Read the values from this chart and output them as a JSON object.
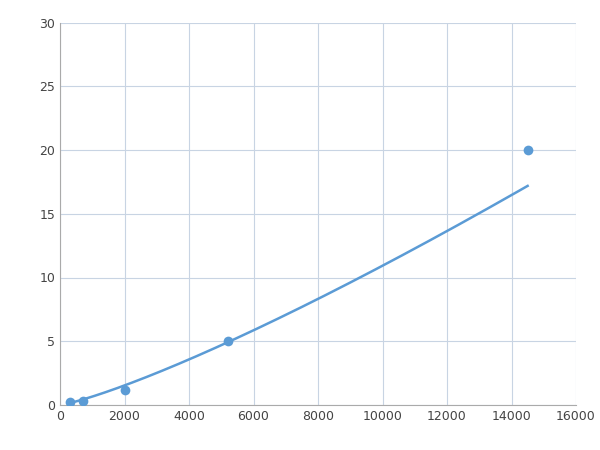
{
  "x_data": [
    300,
    700,
    2000,
    5200,
    14500
  ],
  "y_data": [
    0.2,
    0.35,
    1.2,
    5.0,
    20.0
  ],
  "line_color": "#5b9bd5",
  "marker_color": "#5b9bd5",
  "marker_size": 7,
  "line_width": 1.8,
  "xlim": [
    0,
    16000
  ],
  "ylim": [
    0,
    30
  ],
  "xticks": [
    0,
    2000,
    4000,
    6000,
    8000,
    10000,
    12000,
    14000,
    16000
  ],
  "yticks": [
    0,
    5,
    10,
    15,
    20,
    25,
    30
  ],
  "grid_color": "#c8d4e3",
  "background_color": "#ffffff",
  "figsize": [
    6.0,
    4.5
  ],
  "dpi": 100
}
